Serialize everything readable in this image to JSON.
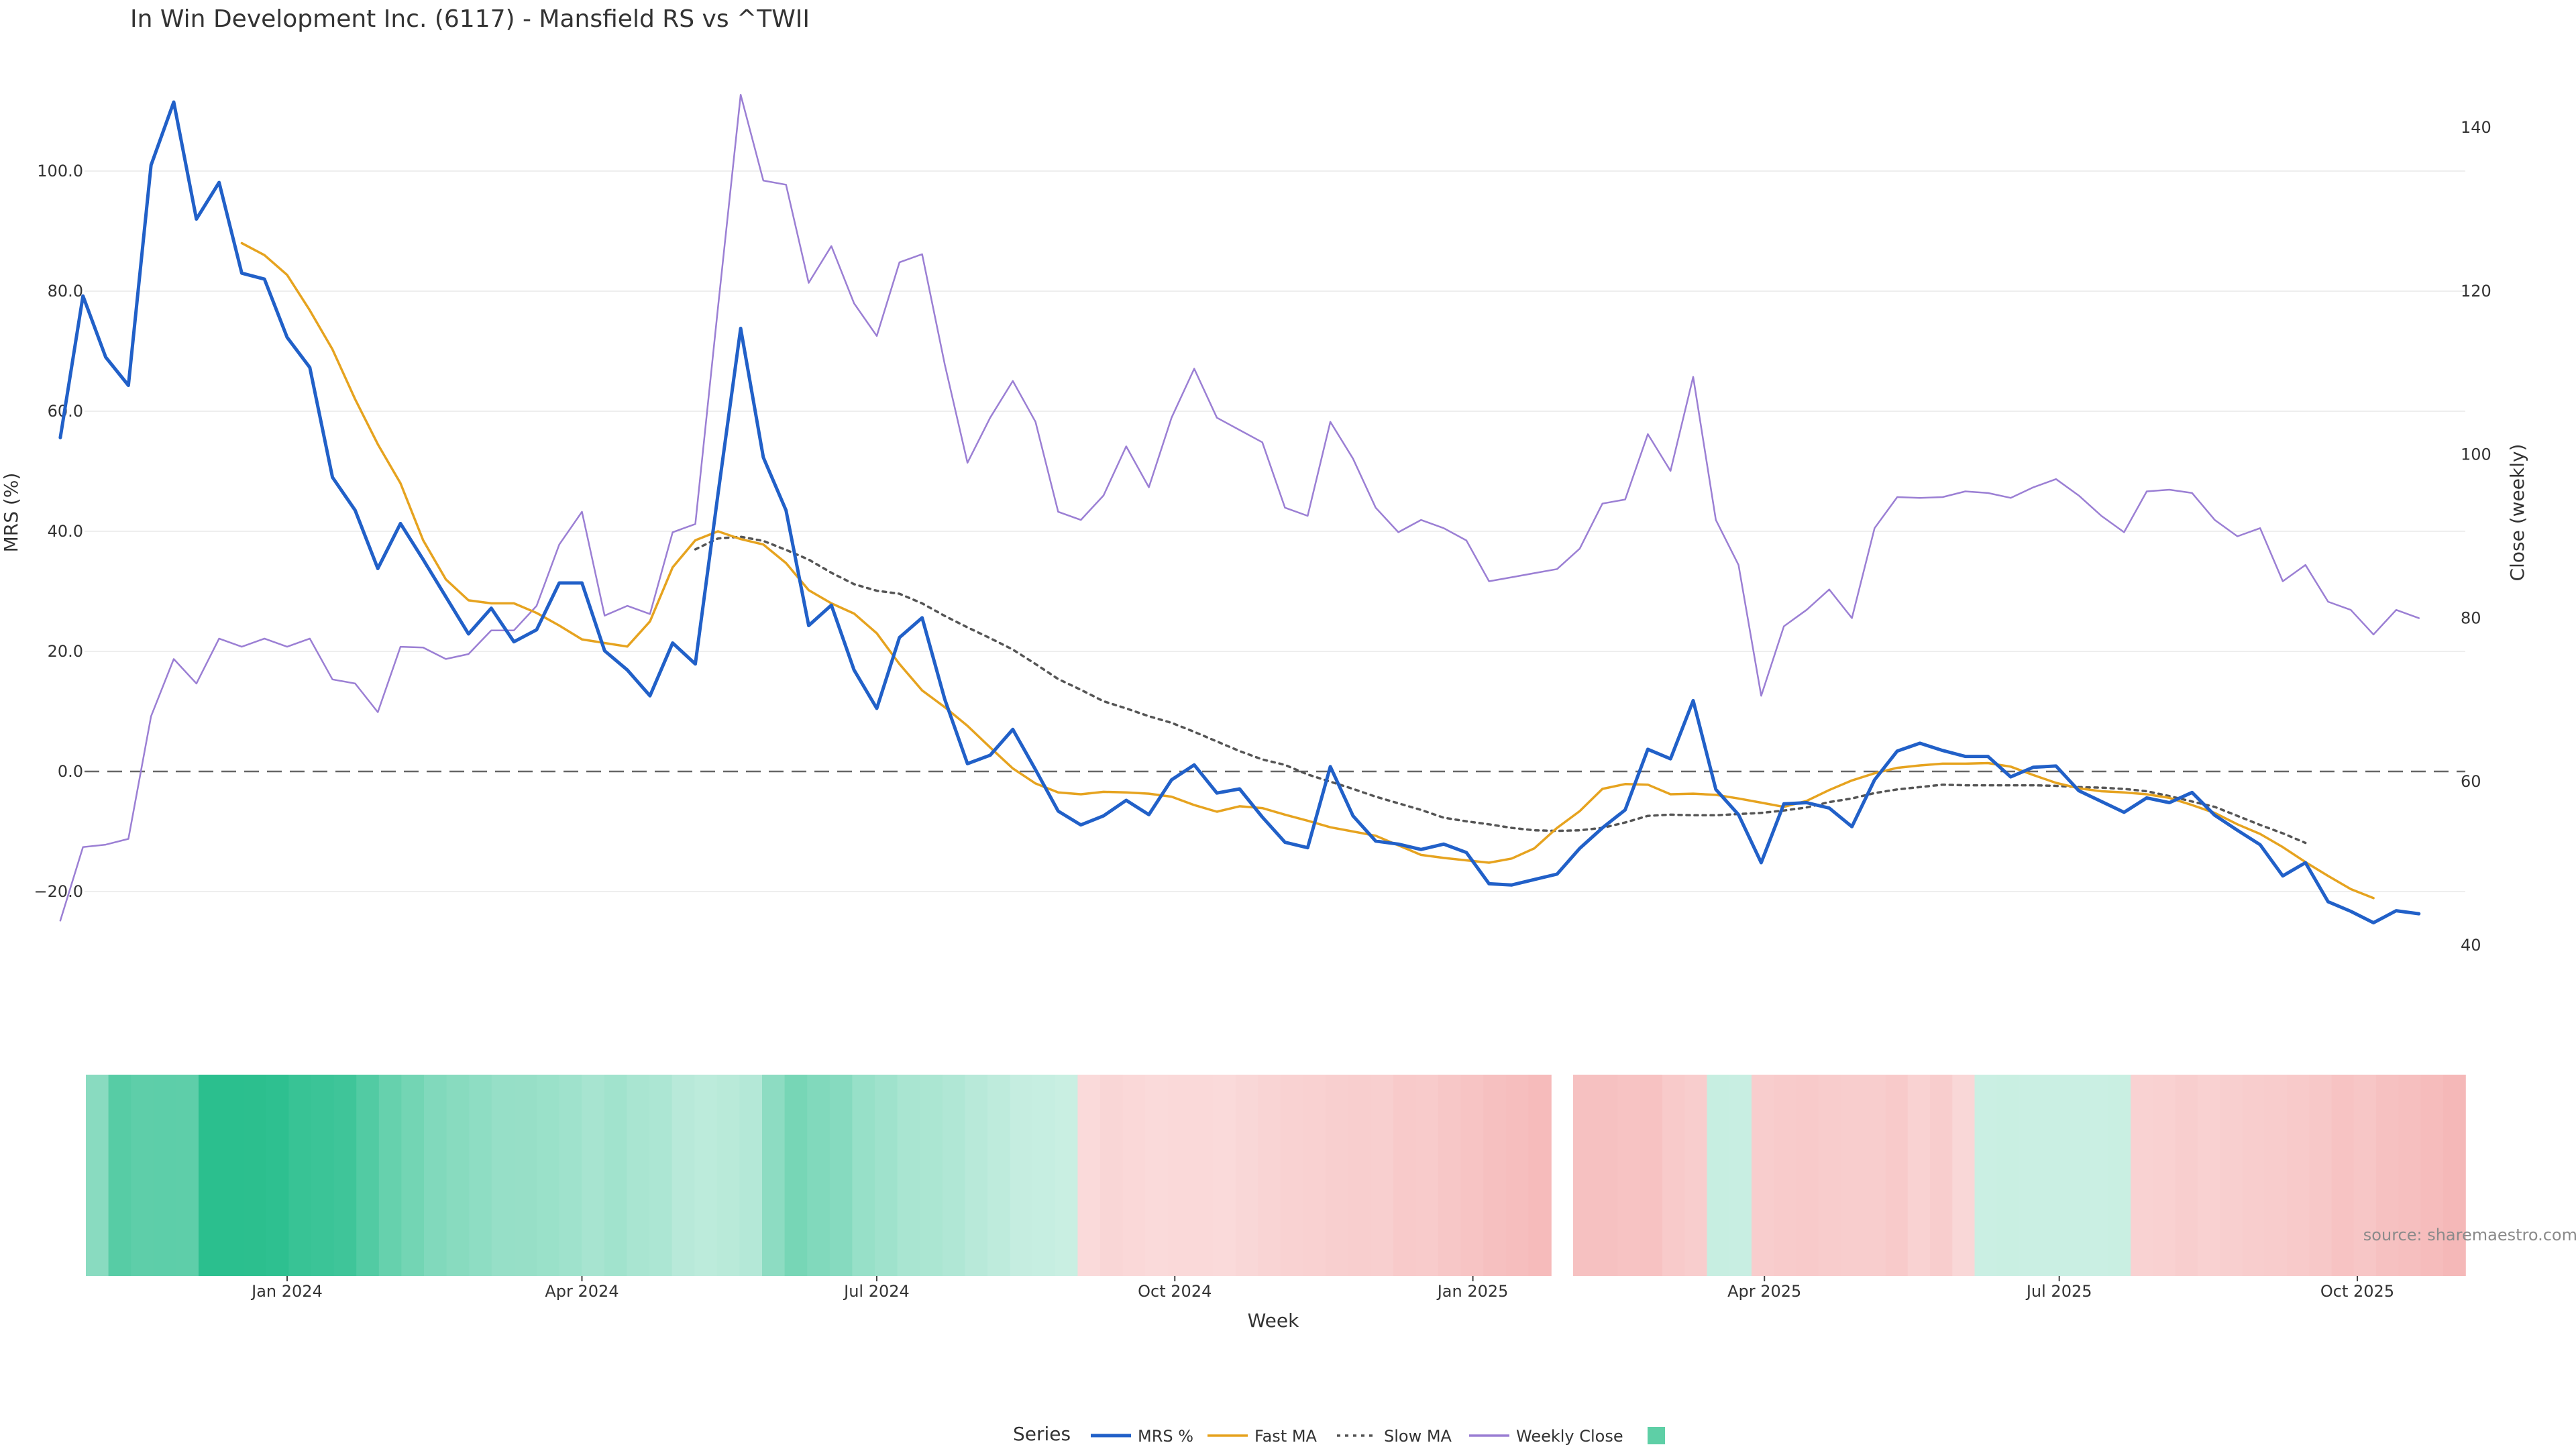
{
  "chart_data": {
    "type": "line",
    "title": "In Win Development Inc. (6117) - Mansfield RS vs ^TWII",
    "ylabel": "MRS (%)",
    "y2label": "Close (weekly)",
    "xlabel": "Week",
    "ylim": [
      -25,
      115
    ],
    "y2lim": [
      40,
      146
    ],
    "yticks": [
      -20,
      0,
      20,
      40,
      60,
      80,
      100
    ],
    "ytick_labels": [
      "−20.0",
      "0.0",
      "20.0",
      "40.0",
      "60.0",
      "80.0",
      "100.0"
    ],
    "y2ticks": [
      40,
      60,
      80,
      100,
      120,
      140
    ],
    "y2tick_labels": [
      "40",
      "60",
      "80",
      "100",
      "120",
      "140"
    ],
    "x_start": "2023-10-16",
    "x_end": "2025-11-10",
    "xticks": [
      {
        "date": "2024-01-01",
        "label": "Jan 2024"
      },
      {
        "date": "2024-04-01",
        "label": "Apr 2024"
      },
      {
        "date": "2024-07-01",
        "label": "Jul 2024"
      },
      {
        "date": "2024-10-01",
        "label": "Oct 2024"
      },
      {
        "date": "2025-01-01",
        "label": "Jan 2025"
      },
      {
        "date": "2025-04-01",
        "label": "Apr 2025"
      },
      {
        "date": "2025-07-01",
        "label": "Jul 2025"
      },
      {
        "date": "2025-10-01",
        "label": "Oct 2025"
      }
    ],
    "grid": true,
    "zero_line": true,
    "legend_position": "bottom",
    "legend_title": "Series",
    "source_label": "source: sharemaestro.com",
    "series": [
      {
        "name": "MRS %",
        "color": "#2160c8",
        "axis": "left",
        "style": "solid",
        "start_date": "2023-10-23",
        "values": [
          55.6,
          79.2,
          69.0,
          64.3,
          101.0,
          111.5,
          92.0,
          98.1,
          83.0,
          82.0,
          72.3,
          67.3,
          49.0,
          43.5,
          33.8,
          41.3,
          35.3,
          29.1,
          22.9,
          27.2,
          21.6,
          23.6,
          31.4,
          31.4,
          20.1,
          16.9,
          12.6,
          21.4,
          17.9,
          46.2,
          73.8,
          52.3,
          43.5,
          24.3,
          27.7,
          16.9,
          10.5,
          22.3,
          25.6,
          12.0,
          1.3,
          2.7,
          7.0,
          0.3,
          -6.6,
          -8.9,
          -7.4,
          -4.8,
          -7.2,
          -1.4,
          1.1,
          -3.6,
          -2.9,
          -7.6,
          -11.8,
          -12.7,
          0.8,
          -7.4,
          -11.6,
          -12.1,
          -13.0,
          -12.1,
          -13.5,
          -18.7,
          -18.9,
          -18.0,
          -17.1,
          -12.8,
          -9.4,
          -6.4,
          3.7,
          2.1,
          11.8,
          -3.0,
          -7.2,
          -15.2,
          -5.4,
          -5.2,
          -6.1,
          -9.2,
          -1.4,
          3.4,
          4.7,
          3.5,
          2.5,
          2.5,
          -0.9,
          0.7,
          0.9,
          -3.2,
          -5.0,
          -6.8,
          -4.4,
          -5.2,
          -3.5,
          -7.3,
          -9.8,
          -12.2,
          -17.4,
          -15.2,
          -21.7,
          -23.3,
          -25.2,
          -23.2,
          -23.7
        ]
      },
      {
        "name": "Fast MA",
        "color": "#e6a31f",
        "axis": "left",
        "style": "solid",
        "start_date": "2023-12-18",
        "values": [
          88.0,
          86.0,
          82.7,
          76.8,
          70.3,
          62.0,
          54.5,
          48.0,
          38.5,
          32.0,
          28.5,
          28.0,
          28.0,
          26.4,
          24.3,
          22.0,
          21.4,
          20.8,
          25.0,
          34.0,
          38.5,
          40.0,
          38.7,
          37.8,
          34.7,
          30.2,
          28.0,
          26.3,
          23.0,
          17.9,
          13.5,
          10.7,
          7.6,
          4.0,
          0.5,
          -2.0,
          -3.5,
          -3.8,
          -3.4,
          -3.5,
          -3.7,
          -4.2,
          -5.6,
          -6.7,
          -5.8,
          -6.1,
          -7.2,
          -8.2,
          -9.3,
          -10.0,
          -10.7,
          -12.3,
          -13.9,
          -14.4,
          -14.8,
          -15.2,
          -14.5,
          -12.8,
          -9.4,
          -6.6,
          -2.9,
          -2.1,
          -2.2,
          -3.8,
          -3.7,
          -3.9,
          -4.5,
          -5.2,
          -5.9,
          -4.9,
          -3.1,
          -1.5,
          -0.3,
          0.6,
          1.0,
          1.3,
          1.3,
          1.4,
          0.8,
          -0.6,
          -1.9,
          -2.8,
          -3.3,
          -3.5,
          -3.8,
          -4.4,
          -5.6,
          -6.9,
          -8.8,
          -10.4,
          -12.6,
          -15.1,
          -17.4,
          -19.6,
          -21.1
        ]
      },
      {
        "name": "Slow MA",
        "color": "#555555",
        "axis": "left",
        "style": "dotted",
        "start_date": "2024-05-06",
        "values": [
          37.0,
          38.8,
          39.1,
          38.4,
          36.9,
          35.3,
          33.1,
          31.2,
          30.1,
          29.6,
          28.0,
          25.9,
          24.0,
          22.2,
          20.3,
          17.9,
          15.4,
          13.6,
          11.7,
          10.5,
          9.2,
          8.1,
          6.6,
          5.0,
          3.4,
          2.0,
          1.1,
          -0.5,
          -1.7,
          -2.9,
          -4.2,
          -5.3,
          -6.4,
          -7.7,
          -8.3,
          -8.8,
          -9.4,
          -9.8,
          -9.9,
          -9.8,
          -9.4,
          -8.5,
          -7.4,
          -7.2,
          -7.3,
          -7.3,
          -7.1,
          -6.9,
          -6.5,
          -6.0,
          -5.1,
          -4.5,
          -3.6,
          -3.0,
          -2.6,
          -2.2,
          -2.3,
          -2.3,
          -2.3,
          -2.3,
          -2.4,
          -2.6,
          -2.7,
          -2.9,
          -3.3,
          -4.1,
          -5.0,
          -5.9,
          -7.4,
          -8.9,
          -10.3,
          -11.9
        ]
      },
      {
        "name": "Weekly Close",
        "color": "#9b7fd4",
        "axis": "right",
        "style": "solid",
        "start_date": "2023-10-23",
        "values": [
          43,
          52,
          52.3,
          53,
          68,
          75,
          72,
          77.5,
          76.5,
          77.5,
          76.5,
          77.5,
          72.5,
          72,
          68.5,
          76.5,
          76.4,
          75,
          75.6,
          78.5,
          78.5,
          81.5,
          89,
          93,
          80.3,
          81.5,
          80.5,
          90.5,
          91.5,
          118,
          144,
          133.5,
          133,
          121,
          125.5,
          118.5,
          114.5,
          123.5,
          124.5,
          111,
          99,
          104.5,
          109,
          104,
          93,
          92,
          95,
          101,
          96,
          104.5,
          110.5,
          104.5,
          103,
          101.5,
          93.5,
          92.5,
          104,
          99.5,
          93.5,
          90.5,
          92,
          91,
          89.5,
          84.5,
          85,
          85.5,
          86,
          88.5,
          94,
          94.5,
          102.5,
          98,
          109.5,
          92,
          86.5,
          70.5,
          79,
          81,
          83.5,
          80,
          91,
          94.8,
          94.7,
          94.8,
          95.5,
          95.3,
          94.7,
          96,
          97,
          95,
          92.5,
          90.5,
          95.5,
          95.7,
          95.3,
          92,
          90,
          91,
          84.5,
          86.5,
          82,
          81,
          78,
          81,
          80
        ]
      }
    ],
    "heatmap": {
      "description": "MRS regime strip (green = positive MRS, red = negative MRS)",
      "positive_color": "#2bbf8e",
      "negative_color": "#f5b7b7",
      "segments": [
        {
          "values": [
            48.0,
            75.6,
            71.7,
            72.4,
            71.8,
            101.0,
            111.5,
            99.5,
            98.1,
            93.0,
            91.0,
            89.0,
            78.3,
            67.3,
            60.0,
            52.5,
            48.5,
            45.0,
            40.5,
            40.3,
            38.2,
            35.8,
            31.4,
            34.5,
            30.0,
            28.5,
            22.0,
            19.6,
            21.4,
            23.9,
            45.8,
            58.0,
            52.3,
            49.5,
            40.0,
            35.8,
            30.1,
            29.0,
            26.2,
            22.0,
            18.5,
            14.8,
            14.0,
            12.3,
            -6.6,
            -8.9,
            -7.4,
            -6.8,
            -7.2,
            -7.0,
            -6.7,
            -8.5,
            -9.8,
            -11.2,
            -11.8,
            -12.7,
            -13.3,
            -12.4,
            -15.5,
            -14.8,
            -17.3,
            -19.0,
            -20.9,
            -22.2,
            -23.9
          ]
        },
        {
          "values": [
            -20.5,
            -20.3,
            -19.6,
            -19.8,
            -15.5,
            -13.9,
            13.3,
            12.9,
            -14.0,
            -14.8,
            -15.4,
            -14.1,
            -13.8,
            -13.6,
            -15.2,
            -11.1,
            -13.9,
            -8.1,
            12.0,
            12.1,
            11.8,
            11.8,
            11.8,
            12.0,
            12.1,
            -11.1,
            -11.7,
            -13.2,
            -11.6,
            -12.4,
            -13.6,
            -14.5,
            -15.7,
            -16.5,
            -19.2,
            -17.4,
            -20.3,
            -21.7,
            -23.3,
            -25.2
          ]
        }
      ]
    },
    "legend": [
      {
        "label": "MRS %",
        "color": "#2160c8",
        "style": "solid"
      },
      {
        "label": "Fast MA",
        "color": "#e6a31f",
        "style": "solid"
      },
      {
        "label": "Slow MA",
        "color": "#555555",
        "style": "dotted"
      },
      {
        "label": "Weekly Close",
        "color": "#9b7fd4",
        "style": "solid"
      },
      {
        "label": "",
        "color": "#5ecfa6",
        "style": "swatch"
      }
    ]
  }
}
